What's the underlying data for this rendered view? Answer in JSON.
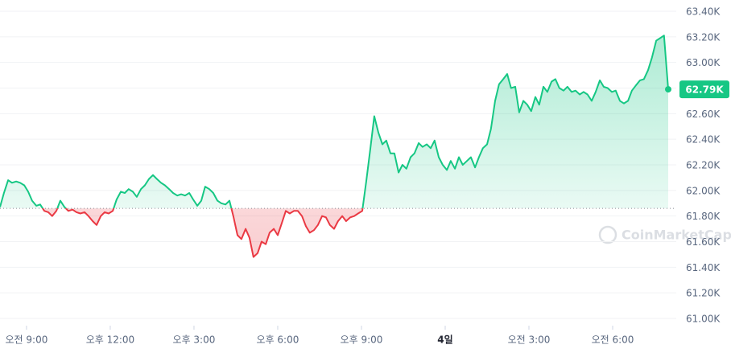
{
  "chart_data": {
    "type": "line",
    "watermark": "CoinMarketCap",
    "x": [
      8.05,
      8.19,
      8.34,
      8.48,
      8.63,
      8.77,
      8.92,
      9.06,
      9.2,
      9.35,
      9.49,
      9.64,
      9.78,
      9.92,
      10.07,
      10.21,
      10.36,
      10.5,
      10.65,
      10.79,
      10.93,
      11.08,
      11.22,
      11.37,
      11.51,
      11.66,
      11.8,
      11.94,
      12.09,
      12.23,
      12.38,
      12.52,
      12.66,
      12.81,
      12.95,
      13.1,
      13.24,
      13.39,
      13.53,
      13.67,
      13.82,
      13.96,
      14.11,
      14.25,
      14.4,
      14.54,
      14.68,
      14.83,
      14.97,
      15.12,
      15.26,
      15.4,
      15.55,
      15.69,
      15.84,
      15.98,
      16.13,
      16.27,
      16.41,
      16.56,
      16.7,
      16.85,
      16.99,
      17.13,
      17.28,
      17.42,
      17.57,
      17.71,
      17.86,
      18.0,
      18.14,
      18.29,
      18.43,
      18.58,
      18.72,
      18.87,
      19.01,
      19.15,
      19.3,
      19.44,
      19.59,
      19.73,
      19.87,
      20.02,
      20.16,
      20.31,
      20.45,
      20.6,
      20.74,
      20.88,
      21.03,
      21.17,
      21.32,
      21.46,
      21.61,
      21.75,
      21.89,
      22.04,
      22.18,
      22.33,
      22.47,
      22.61,
      22.76,
      22.9,
      23.05,
      23.19,
      23.34,
      23.48,
      23.62,
      23.77,
      23.91,
      24.06,
      24.2,
      24.35,
      24.49,
      24.63,
      24.78,
      24.92,
      25.07,
      25.21,
      25.35,
      25.5,
      25.64,
      25.79,
      25.93,
      26.08,
      26.22,
      26.36,
      26.51,
      26.65,
      26.8,
      26.94,
      27.08,
      27.23,
      27.37,
      27.52,
      27.66,
      27.81,
      27.95,
      28.09,
      28.24,
      28.38,
      28.53,
      28.67,
      28.82,
      28.96,
      29.1,
      29.25,
      29.39,
      29.54,
      29.68,
      29.82,
      29.97,
      30.11,
      30.26,
      30.4,
      30.55,
      30.69,
      30.83,
      30.98,
      31.12,
      31.27,
      31.41,
      31.56,
      31.7,
      31.84,
      31.99
    ],
    "values": [
      61.87,
      61.98,
      62.08,
      62.06,
      62.07,
      62.06,
      62.04,
      61.99,
      61.92,
      61.88,
      61.89,
      61.84,
      61.83,
      61.8,
      61.84,
      61.92,
      61.87,
      61.84,
      61.85,
      61.83,
      61.82,
      61.83,
      61.8,
      61.76,
      61.73,
      61.8,
      61.83,
      61.82,
      61.84,
      61.93,
      61.99,
      61.98,
      62.01,
      61.99,
      61.95,
      62.01,
      62.04,
      62.09,
      62.12,
      62.09,
      62.06,
      62.04,
      62.01,
      61.98,
      61.96,
      61.97,
      61.96,
      61.98,
      61.93,
      61.88,
      61.92,
      62.03,
      62.01,
      61.98,
      61.92,
      61.9,
      61.89,
      61.92,
      61.8,
      61.65,
      61.62,
      61.7,
      61.63,
      61.48,
      61.51,
      61.6,
      61.58,
      61.67,
      61.7,
      61.65,
      61.74,
      61.84,
      61.82,
      61.84,
      61.84,
      61.8,
      61.72,
      61.67,
      61.69,
      61.73,
      61.8,
      61.79,
      61.73,
      61.7,
      61.76,
      61.8,
      61.76,
      61.79,
      61.8,
      61.82,
      61.84,
      62.07,
      62.33,
      62.58,
      62.45,
      62.36,
      62.39,
      62.29,
      62.29,
      62.14,
      62.2,
      62.17,
      62.26,
      62.29,
      62.37,
      62.34,
      62.36,
      62.33,
      62.39,
      62.26,
      62.2,
      62.16,
      62.23,
      62.17,
      62.26,
      62.2,
      62.23,
      62.26,
      62.18,
      62.26,
      62.33,
      62.36,
      62.48,
      62.7,
      62.83,
      62.87,
      62.91,
      62.8,
      62.81,
      62.61,
      62.7,
      62.67,
      62.62,
      62.73,
      62.67,
      62.81,
      62.77,
      62.85,
      62.87,
      62.8,
      62.78,
      62.81,
      62.77,
      62.78,
      62.75,
      62.77,
      62.75,
      62.7,
      62.77,
      62.86,
      62.81,
      62.8,
      62.77,
      62.78,
      62.7,
      62.68,
      62.7,
      62.78,
      62.82,
      62.86,
      62.87,
      62.94,
      63.04,
      63.17,
      63.19,
      63.21,
      62.79
    ],
    "baseline": 61.86,
    "up_color": "#16c784",
    "down_color": "#ea3943",
    "current_price": {
      "value": 62.79,
      "label": "62.79K"
    },
    "xlim": [
      8.05,
      31.99
    ],
    "xticks": [
      {
        "value": 9,
        "label": "오전 9:00"
      },
      {
        "value": 12,
        "label": "오후 12:00"
      },
      {
        "value": 15,
        "label": "오후 3:00"
      },
      {
        "value": 18,
        "label": "오후 6:00"
      },
      {
        "value": 21,
        "label": "오후 9:00"
      },
      {
        "value": 24,
        "label": "4일"
      },
      {
        "value": 27,
        "label": "오전 3:00"
      },
      {
        "value": 30,
        "label": "오전 6:00"
      }
    ],
    "ylim": [
      61.0,
      63.4
    ],
    "yticks": [
      {
        "value": 61.0,
        "label": "61.00K"
      },
      {
        "value": 61.2,
        "label": "61.20K"
      },
      {
        "value": 61.4,
        "label": "61.40K"
      },
      {
        "value": 61.6,
        "label": "61.60K"
      },
      {
        "value": 61.8,
        "label": "61.80K"
      },
      {
        "value": 62.0,
        "label": "62.00K"
      },
      {
        "value": 62.2,
        "label": "62.20K"
      },
      {
        "value": 62.4,
        "label": "62.40K"
      },
      {
        "value": 62.6,
        "label": "62.60K"
      },
      {
        "value": 62.8,
        "label": "62.80K"
      },
      {
        "value": 63.0,
        "label": "63.00K"
      },
      {
        "value": 63.2,
        "label": "63.20K"
      },
      {
        "value": 63.4,
        "label": "63.40K"
      }
    ],
    "grid": true
  }
}
